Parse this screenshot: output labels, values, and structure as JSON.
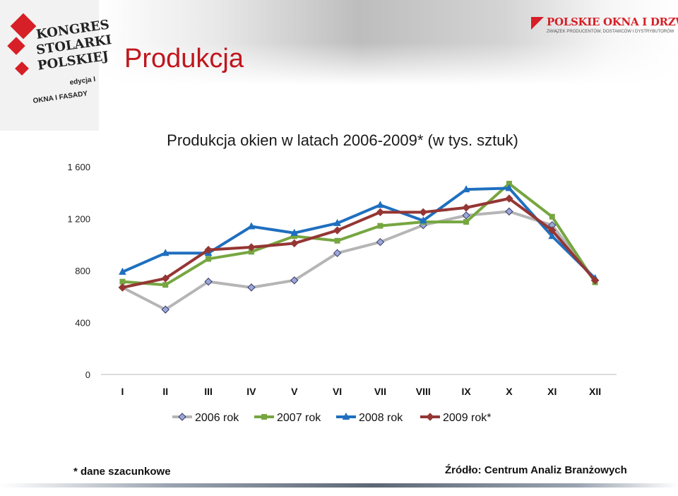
{
  "slide": {
    "title": "Produkcja"
  },
  "logos": {
    "left_lines": [
      "KONGRES",
      "STOLARKI",
      "POLSKIEJ"
    ],
    "left_edition": "edycja I",
    "left_sub": "OKNA I FASADY",
    "right_brand": "POLSKIE OKNA I DRZWI",
    "right_tagline": "ZWIĄZEK PRODUCENTÓW, DOSTAWCÓW I DYSTRYBUTORÓW"
  },
  "footer": {
    "note": "* dane szacunkowe",
    "source": "Źródło: Centrum Analiz Branżowych"
  },
  "chart_data": {
    "type": "line",
    "title": "Produkcja okien w latach 2006-2009* (w tys. sztuk)",
    "categories": [
      "I",
      "II",
      "III",
      "IV",
      "V",
      "VI",
      "VII",
      "VIII",
      "IX",
      "X",
      "XI",
      "XII"
    ],
    "y_ticks": [
      {
        "value": 0,
        "label": "0"
      },
      {
        "value": 400,
        "label": "400"
      },
      {
        "value": 800,
        "label": "800"
      },
      {
        "value": 1200,
        "label": "1 200"
      },
      {
        "value": 1600,
        "label": "1 600"
      }
    ],
    "ylim": [
      0,
      1600
    ],
    "grid": false,
    "legend_position": "bottom",
    "series": [
      {
        "name": "2006 rok",
        "color": "#b5b5b5",
        "marker_color": "#9aa8d8",
        "marker": "diamond",
        "values": [
          670,
          500,
          715,
          670,
          725,
          935,
          1020,
          1150,
          1225,
          1255,
          1150,
          725
        ]
      },
      {
        "name": "2007 rok",
        "color": "#77a641",
        "marker_color": "#77a641",
        "marker": "square",
        "values": [
          715,
          690,
          890,
          945,
          1065,
          1030,
          1145,
          1175,
          1175,
          1470,
          1215,
          710
        ]
      },
      {
        "name": "2008 rok",
        "color": "#1f6fbf",
        "marker_color": "#1f6fbf",
        "marker": "triangle",
        "values": [
          790,
          935,
          935,
          1140,
          1090,
          1165,
          1305,
          1185,
          1425,
          1435,
          1065,
          740
        ]
      },
      {
        "name": "2009 rok*",
        "color": "#943634",
        "marker_color": "#943634",
        "marker": "diamond",
        "values": [
          670,
          740,
          960,
          980,
          1010,
          1110,
          1250,
          1250,
          1285,
          1355,
          1110,
          725
        ]
      }
    ]
  }
}
